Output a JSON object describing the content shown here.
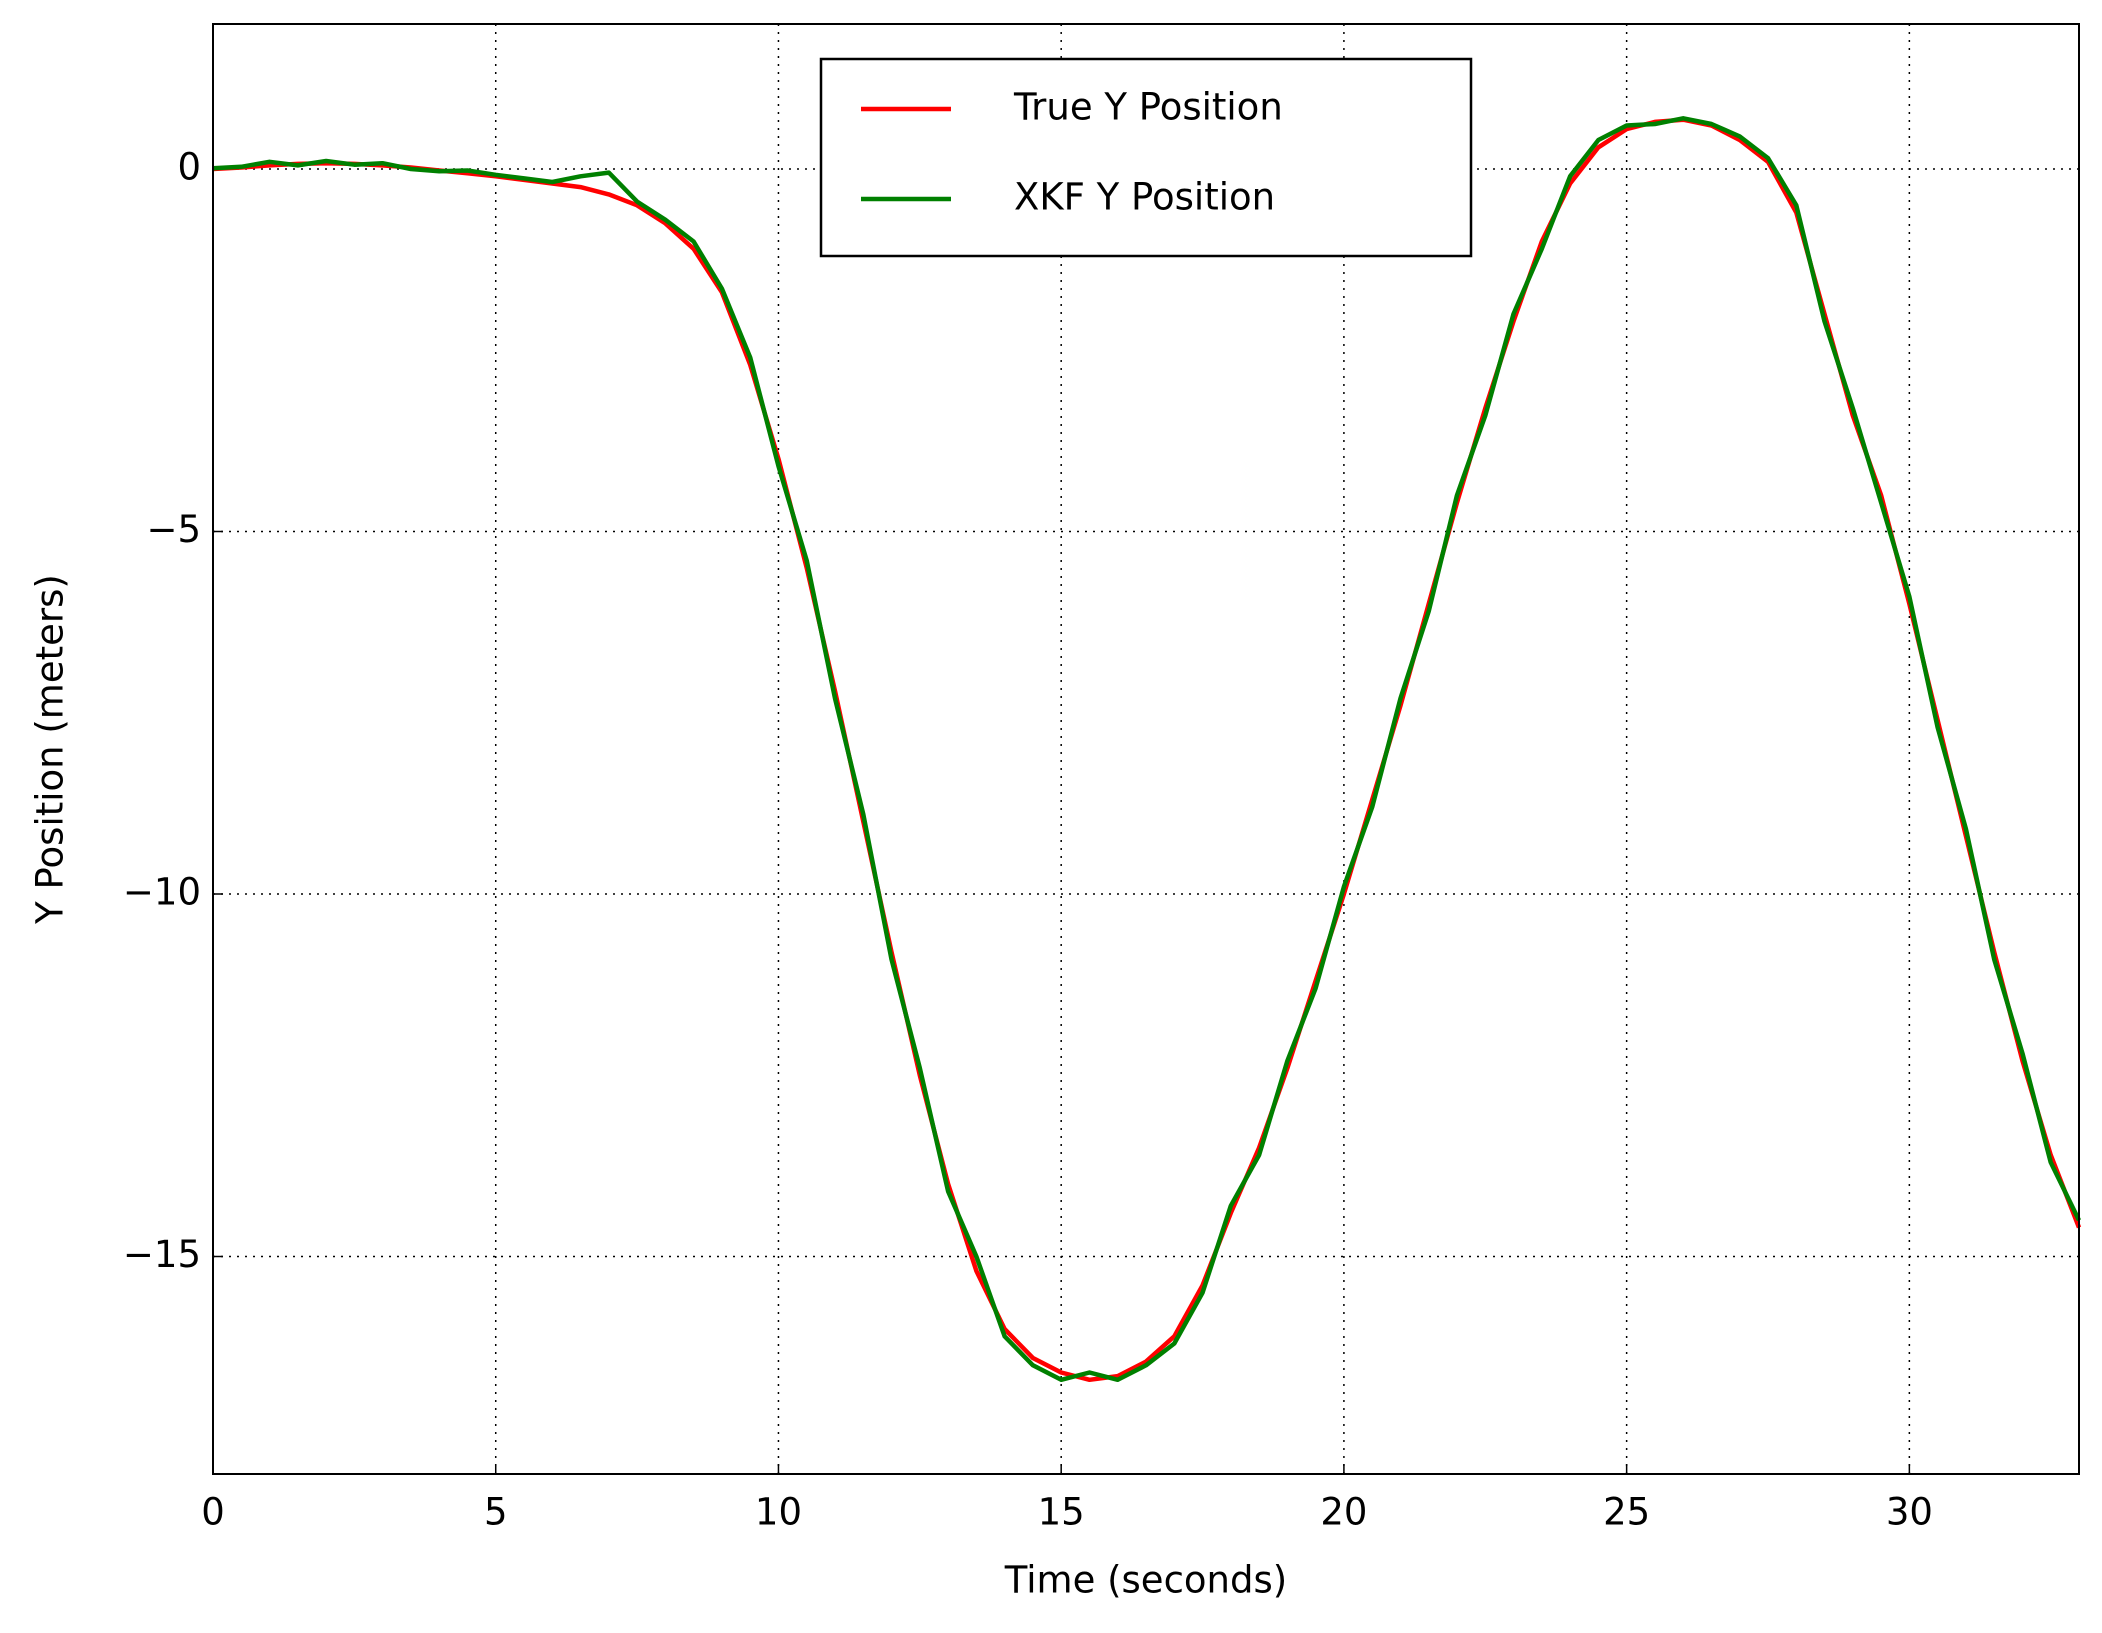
{
  "chart_data": {
    "type": "line",
    "xlabel": "Time (seconds)",
    "ylabel": "Y Position (meters)",
    "x": [
      0,
      0.5,
      1,
      1.5,
      2,
      2.5,
      3,
      3.5,
      4,
      4.5,
      5,
      5.5,
      6,
      6.5,
      7,
      7.5,
      8,
      8.5,
      9,
      9.5,
      10,
      10.5,
      11,
      11.5,
      12,
      12.5,
      13,
      13.5,
      14,
      14.5,
      15,
      15.5,
      16,
      16.5,
      17,
      17.5,
      18,
      18.5,
      19,
      19.5,
      20,
      20.5,
      21,
      21.5,
      22,
      22.5,
      23,
      23.5,
      24,
      24.5,
      25,
      25.5,
      26,
      26.5,
      27,
      27.5,
      28,
      28.5,
      29,
      29.5,
      30,
      30.5,
      31,
      31.5,
      32,
      32.5,
      33
    ],
    "series": [
      {
        "name": "True Y Position",
        "color": "#ff0000",
        "values": [
          0,
          0.02,
          0.05,
          0.07,
          0.08,
          0.07,
          0.05,
          0.02,
          -0.02,
          -0.06,
          -0.1,
          -0.15,
          -0.2,
          -0.25,
          -0.35,
          -0.5,
          -0.75,
          -1.1,
          -1.7,
          -2.7,
          -4.0,
          -5.5,
          -7.2,
          -9.0,
          -10.8,
          -12.5,
          -14.0,
          -15.2,
          -16.0,
          -16.4,
          -16.6,
          -16.7,
          -16.65,
          -16.45,
          -16.1,
          -15.4,
          -14.4,
          -13.5,
          -12.4,
          -11.2,
          -10.0,
          -8.7,
          -7.4,
          -6.0,
          -4.6,
          -3.3,
          -2.1,
          -1.0,
          -0.2,
          0.3,
          0.55,
          0.65,
          0.68,
          0.6,
          0.4,
          0.1,
          -0.6,
          -2.0,
          -3.4,
          -4.5,
          -6.0,
          -7.6,
          -9.2,
          -10.8,
          -12.3,
          -13.6,
          -14.6
        ]
      },
      {
        "name": "XKF Y Position",
        "color": "#008000",
        "values": [
          0.01,
          0.03,
          0.1,
          0.05,
          0.11,
          0.06,
          0.08,
          0.0,
          -0.03,
          -0.02,
          -0.08,
          -0.13,
          -0.18,
          -0.1,
          -0.05,
          -0.45,
          -0.7,
          -1.0,
          -1.65,
          -2.6,
          -4.1,
          -5.4,
          -7.3,
          -8.9,
          -10.9,
          -12.4,
          -14.1,
          -15.0,
          -16.1,
          -16.5,
          -16.7,
          -16.6,
          -16.7,
          -16.5,
          -16.2,
          -15.5,
          -14.3,
          -13.6,
          -12.3,
          -11.3,
          -9.9,
          -8.8,
          -7.3,
          -6.1,
          -4.5,
          -3.4,
          -2.0,
          -1.1,
          -0.1,
          0.4,
          0.6,
          0.62,
          0.7,
          0.62,
          0.45,
          0.15,
          -0.5,
          -2.1,
          -3.3,
          -4.6,
          -5.9,
          -7.7,
          -9.1,
          -10.9,
          -12.2,
          -13.7,
          -14.5
        ]
      }
    ],
    "xlim": [
      0,
      33
    ],
    "ylim": [
      -18,
      2
    ],
    "xticks": [
      0,
      5,
      10,
      15,
      20,
      25,
      30
    ],
    "yticks": [
      0,
      {
        "value": -5,
        "label": "−5"
      },
      {
        "value": -10,
        "label": "−10"
      },
      {
        "value": -15,
        "label": "−15"
      }
    ],
    "grid": true,
    "legend": "upper center"
  }
}
